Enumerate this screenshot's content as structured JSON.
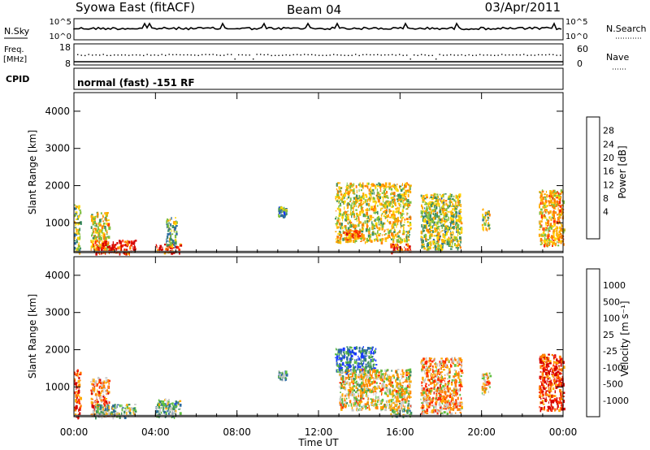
{
  "header": {
    "station": "Syowa East (fitACF)",
    "beam": "Beam 04",
    "date": "03/Apr/2011"
  },
  "top_panels": {
    "nsky_label": "N.Sky",
    "nsky_ticks": [
      "10^5",
      "10^0"
    ],
    "nsearch_label": "N.Search",
    "nsearch_ticks": [
      "10^5",
      "10^0"
    ],
    "freq_label": "Freq.",
    "freq_unit": "[MHz]",
    "freq_ticks": [
      "18",
      "8"
    ],
    "nave_label": "Nave",
    "nave_ticks": [
      "60",
      "0"
    ],
    "cpid_label": "CPID",
    "cpid_text": "normal (fast) -151 RF"
  },
  "chart_data": [
    {
      "type": "heatmap",
      "name": "power",
      "ylabel": "Slant Range [km]",
      "xlabel": "",
      "x_ticks": [
        "00:00",
        "04:00",
        "08:00",
        "12:00",
        "16:00",
        "20:00",
        "00:00"
      ],
      "x_hours": [
        0,
        4,
        8,
        12,
        16,
        20,
        24
      ],
      "xlim": [
        0,
        24
      ],
      "ylim": [
        200,
        4500
      ],
      "y_ticks": [
        1000,
        2000,
        3000,
        4000
      ],
      "colorbar": {
        "label": "Power [dB]",
        "tick_labels": [
          "28",
          "24",
          "20",
          "16",
          "12",
          "8",
          "4"
        ],
        "colors": [
          "#d40000",
          "#ff2a00",
          "#ff7f00",
          "#ffaa00",
          "#ffd400",
          "#7fbf3f",
          "#3f8f5f",
          "#2a6aa0",
          "#1a3aff"
        ]
      },
      "scatter_regions": [
        {
          "t0": 0.0,
          "t1": 0.3,
          "r0": 200,
          "r1": 1500,
          "level": 0.4
        },
        {
          "t0": 0.8,
          "t1": 1.7,
          "r0": 250,
          "r1": 1300,
          "level": 0.55
        },
        {
          "t0": 1.0,
          "t1": 3.0,
          "r0": 200,
          "r1": 550,
          "level": 0.9
        },
        {
          "t0": 4.0,
          "t1": 5.2,
          "r0": 220,
          "r1": 450,
          "level": 0.85
        },
        {
          "t0": 4.5,
          "t1": 5.0,
          "r0": 400,
          "r1": 1200,
          "level": 0.35
        },
        {
          "t0": 10.0,
          "t1": 10.4,
          "r0": 1200,
          "r1": 1450,
          "level": 0.3
        },
        {
          "t0": 12.8,
          "t1": 16.5,
          "r0": 500,
          "r1": 2100,
          "level": 0.5
        },
        {
          "t0": 13.2,
          "t1": 14.0,
          "r0": 550,
          "r1": 850,
          "level": 0.75
        },
        {
          "t0": 15.5,
          "t1": 16.5,
          "r0": 220,
          "r1": 450,
          "level": 0.8
        },
        {
          "t0": 17.0,
          "t1": 19.0,
          "r0": 300,
          "r1": 1800,
          "level": 0.45
        },
        {
          "t0": 20.0,
          "t1": 20.4,
          "r0": 800,
          "r1": 1400,
          "level": 0.45
        },
        {
          "t0": 22.8,
          "t1": 24.0,
          "r0": 400,
          "r1": 1900,
          "level": 0.6
        }
      ]
    },
    {
      "type": "heatmap",
      "name": "velocity",
      "ylabel": "Slant Range [km]",
      "xlabel": "Time UT",
      "x_ticks": [
        "00:00",
        "04:00",
        "08:00",
        "12:00",
        "16:00",
        "20:00",
        "00:00"
      ],
      "x_hours": [
        0,
        4,
        8,
        12,
        16,
        20,
        24
      ],
      "xlim": [
        0,
        24
      ],
      "ylim": [
        200,
        4500
      ],
      "y_ticks": [
        1000,
        2000,
        3000,
        4000
      ],
      "colorbar": {
        "label": "Velocity [m s⁻¹]",
        "tick_labels": [
          "1000",
          "500",
          "100",
          "25",
          "-25",
          "-100",
          "-500",
          "-1000"
        ],
        "colors": [
          "#1a3aff",
          "#2a6aa0",
          "#3f8f5f",
          "#5fbf3f",
          "#c8c8c8",
          "#ffaa00",
          "#ff7f00",
          "#ff2a00",
          "#d40000"
        ]
      },
      "scatter_regions": [
        {
          "t0": 0.0,
          "t1": 0.3,
          "r0": 200,
          "r1": 1500,
          "level": 0.2
        },
        {
          "t0": 0.8,
          "t1": 1.7,
          "r0": 250,
          "r1": 1300,
          "level": 0.3
        },
        {
          "t0": 1.0,
          "t1": 3.0,
          "r0": 200,
          "r1": 550,
          "level": 0.6
        },
        {
          "t0": 4.0,
          "t1": 5.2,
          "r0": 220,
          "r1": 700,
          "level": 0.65
        },
        {
          "t0": 10.0,
          "t1": 10.4,
          "r0": 1200,
          "r1": 1450,
          "level": 0.7
        },
        {
          "t0": 12.8,
          "t1": 14.8,
          "r0": 1400,
          "r1": 2100,
          "level": 0.85
        },
        {
          "t0": 13.0,
          "t1": 16.5,
          "r0": 400,
          "r1": 1500,
          "level": 0.45
        },
        {
          "t0": 15.5,
          "t1": 16.5,
          "r0": 220,
          "r1": 450,
          "level": 0.6
        },
        {
          "t0": 17.0,
          "t1": 19.0,
          "r0": 300,
          "r1": 1800,
          "level": 0.35
        },
        {
          "t0": 20.0,
          "t1": 20.4,
          "r0": 800,
          "r1": 1400,
          "level": 0.4
        },
        {
          "t0": 22.8,
          "t1": 24.0,
          "r0": 400,
          "r1": 1900,
          "level": 0.15
        }
      ]
    }
  ]
}
